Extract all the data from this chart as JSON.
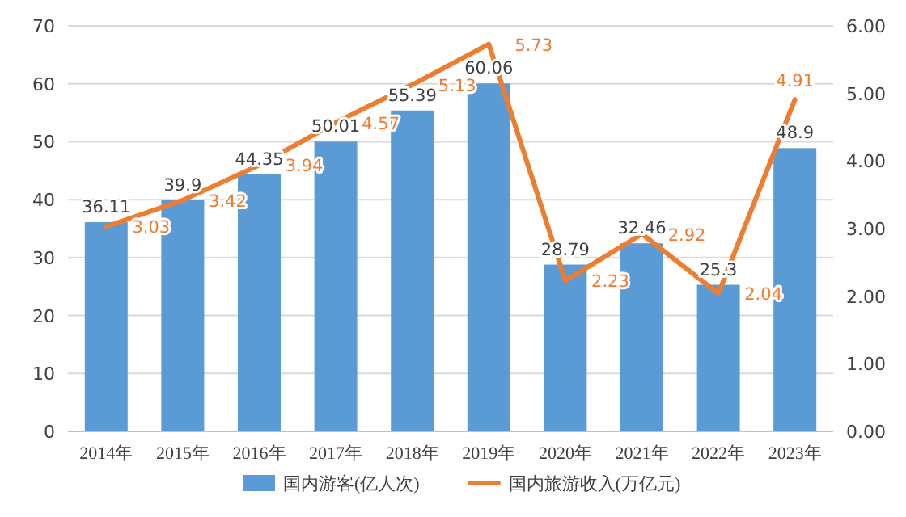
{
  "chart_data": {
    "type": "bar",
    "categories": [
      "2014年",
      "2015年",
      "2016年",
      "2017年",
      "2018年",
      "2019年",
      "2020年",
      "2021年",
      "2022年",
      "2023年"
    ],
    "series": [
      {
        "name": "国内游客(亿人次)",
        "color": "#5b9bd5",
        "values": [
          36.11,
          39.9,
          44.35,
          50.01,
          55.39,
          60.06,
          28.79,
          32.46,
          25.3,
          48.9
        ]
      },
      {
        "name": "国内旅游收入(万亿元)",
        "type": "line",
        "axis": "y2",
        "color": "#ed7d31",
        "values": [
          3.03,
          3.42,
          3.94,
          4.57,
          5.13,
          5.73,
          2.23,
          2.92,
          2.04,
          4.91
        ]
      }
    ],
    "ylim": [
      0,
      70
    ],
    "yticks": [
      0,
      10,
      20,
      30,
      40,
      50,
      60,
      70
    ],
    "y2lim": [
      0,
      6
    ],
    "y2ticks": [
      {
        "value": 0,
        "label": "0.00"
      },
      {
        "value": 1,
        "label": "1.00"
      },
      {
        "value": 2,
        "label": "2.00"
      },
      {
        "value": 3,
        "label": "3.00"
      },
      {
        "value": 4,
        "label": "4.00"
      },
      {
        "value": 5,
        "label": "5.00"
      },
      {
        "value": 6,
        "label": "6.00"
      }
    ],
    "grid": "y",
    "data_labels": true,
    "legend": "bottom"
  }
}
